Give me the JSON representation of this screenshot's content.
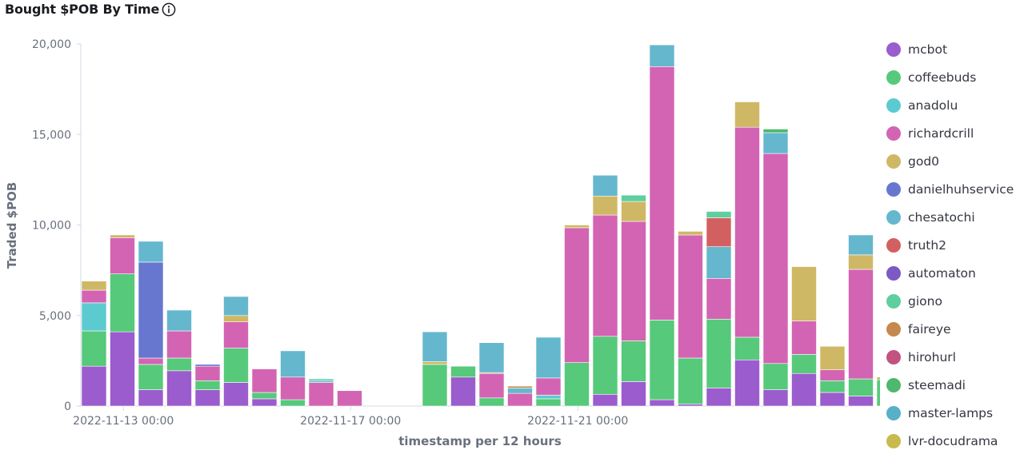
{
  "title": "Bought $POB By Time",
  "chart_data": {
    "type": "bar",
    "stacked": true,
    "title": "Bought $POB By Time",
    "xlabel": "timestamp per 12 hours",
    "ylabel": "Traded $POB",
    "ylim": [
      0,
      20000
    ],
    "yticks": [
      "0",
      "5,000",
      "10,000",
      "15,000",
      "20,000"
    ],
    "y_tick_values": [
      0,
      5000,
      10000,
      15000,
      20000
    ],
    "grid": false,
    "legend_position": "right",
    "x_ticks": [
      {
        "label": "2022-11-13 00:00",
        "category_index": 1.5
      },
      {
        "label": "2022-11-17 00:00",
        "category_index": 9.5
      },
      {
        "label": "2022-11-21 00:00",
        "category_index": 17.5
      }
    ],
    "categories": [
      "2022-11-12 12:00",
      "2022-11-13 00:00",
      "2022-11-13 12:00",
      "2022-11-14 00:00",
      "2022-11-14 12:00",
      "2022-11-15 00:00",
      "2022-11-15 12:00",
      "2022-11-16 00:00",
      "2022-11-16 12:00",
      "2022-11-17 00:00",
      "2022-11-17 12:00",
      "2022-11-18 00:00",
      "2022-11-18 12:00",
      "2022-11-19 00:00",
      "2022-11-19 12:00",
      "2022-11-20 00:00",
      "2022-11-20 12:00",
      "2022-11-21 00:00",
      "2022-11-21 12:00",
      "2022-11-22 00:00",
      "2022-11-22 12:00",
      "2022-11-23 00:00",
      "2022-11-23 12:00",
      "2022-11-24 00:00",
      "2022-11-24 12:00",
      "2022-11-25 00:00",
      "2022-11-25 12:00",
      "2022-11-26 00:00",
      "2022-11-26 12:00",
      "2022-11-27 00:00"
    ],
    "series": [
      {
        "name": "mcbot",
        "color": "#9b5ccd",
        "values": [
          2200,
          4100,
          900,
          1950,
          900,
          1300,
          400,
          0,
          0,
          0,
          0,
          0,
          0,
          1600,
          0,
          0,
          0,
          0,
          650,
          1350,
          350,
          100,
          1000,
          2550,
          900,
          1800,
          750,
          550,
          0,
          0
        ]
      },
      {
        "name": "coffeebuds",
        "color": "#57c97a",
        "values": [
          1950,
          3200,
          1400,
          700,
          500,
          1900,
          350,
          350,
          0,
          0,
          0,
          0,
          2300,
          600,
          450,
          0,
          400,
          2400,
          3200,
          2250,
          4400,
          2550,
          3800,
          1250,
          1450,
          1050,
          650,
          950,
          1450,
          0
        ]
      },
      {
        "name": "anadolu",
        "color": "#5ccbd0",
        "values": [
          1550,
          0,
          0,
          0,
          0,
          0,
          0,
          0,
          0,
          0,
          0,
          0,
          0,
          0,
          0,
          0,
          200,
          0,
          0,
          0,
          0,
          0,
          0,
          0,
          0,
          0,
          0,
          0,
          0,
          0
        ]
      },
      {
        "name": "richardcrill",
        "color": "#d364b3",
        "values": [
          700,
          2000,
          350,
          1500,
          800,
          1450,
          1300,
          1250,
          1300,
          850,
          0,
          0,
          0,
          0,
          1350,
          700,
          950,
          7450,
          6700,
          6600,
          14000,
          6800,
          2250,
          11600,
          11600,
          1850,
          600,
          6050,
          0,
          0
        ]
      },
      {
        "name": "god0",
        "color": "#cfb865",
        "values": [
          500,
          150,
          0,
          0,
          0,
          350,
          0,
          0,
          0,
          0,
          0,
          0,
          150,
          0,
          50,
          0,
          0,
          150,
          1050,
          1100,
          0,
          200,
          0,
          1400,
          0,
          3000,
          1300,
          800,
          150,
          0
        ]
      },
      {
        "name": "danielhuhservice",
        "color": "#6777cf",
        "values": [
          0,
          0,
          5300,
          0,
          100,
          0,
          0,
          0,
          0,
          0,
          0,
          0,
          0,
          0,
          0,
          0,
          0,
          0,
          0,
          0,
          0,
          0,
          0,
          0,
          0,
          0,
          0,
          0,
          0,
          0
        ]
      },
      {
        "name": "chesatochi",
        "color": "#65b7cd",
        "values": [
          0,
          0,
          1150,
          1150,
          0,
          1050,
          0,
          1450,
          100,
          0,
          0,
          0,
          1650,
          0,
          1650,
          300,
          2250,
          0,
          1150,
          0,
          1200,
          0,
          1750,
          0,
          1150,
          0,
          0,
          1100,
          0,
          0
        ]
      },
      {
        "name": "truth2",
        "color": "#d36060",
        "values": [
          0,
          0,
          0,
          0,
          0,
          0,
          0,
          0,
          0,
          0,
          0,
          0,
          0,
          0,
          0,
          0,
          0,
          0,
          0,
          0,
          0,
          0,
          1600,
          0,
          0,
          0,
          0,
          0,
          0,
          0
        ]
      },
      {
        "name": "automaton",
        "color": "#7d59c3",
        "values": [
          0,
          0,
          0,
          0,
          0,
          0,
          0,
          0,
          0,
          0,
          0,
          0,
          0,
          0,
          0,
          0,
          0,
          0,
          0,
          0,
          0,
          0,
          0,
          0,
          0,
          0,
          0,
          0,
          0,
          0
        ]
      },
      {
        "name": "giono",
        "color": "#5fcf9f",
        "values": [
          0,
          0,
          0,
          0,
          0,
          0,
          0,
          0,
          100,
          0,
          0,
          0,
          0,
          0,
          0,
          0,
          0,
          0,
          0,
          350,
          0,
          0,
          350,
          0,
          0,
          0,
          0,
          0,
          0,
          0
        ]
      },
      {
        "name": "faireye",
        "color": "#c5894e",
        "values": [
          0,
          0,
          0,
          0,
          0,
          0,
          0,
          0,
          0,
          0,
          0,
          0,
          0,
          0,
          0,
          100,
          0,
          0,
          0,
          0,
          0,
          0,
          0,
          0,
          0,
          0,
          0,
          0,
          0,
          0
        ]
      },
      {
        "name": "hirohurl",
        "color": "#c25381",
        "values": [
          0,
          0,
          0,
          0,
          0,
          0,
          0,
          0,
          0,
          0,
          0,
          0,
          0,
          0,
          0,
          0,
          0,
          0,
          0,
          0,
          0,
          0,
          0,
          0,
          0,
          0,
          0,
          0,
          0,
          0
        ]
      },
      {
        "name": "steemadi",
        "color": "#4eb86c",
        "values": [
          0,
          0,
          0,
          0,
          0,
          0,
          0,
          0,
          0,
          0,
          0,
          0,
          0,
          0,
          0,
          0,
          0,
          0,
          0,
          0,
          0,
          0,
          0,
          0,
          200,
          0,
          0,
          0,
          0,
          0
        ]
      },
      {
        "name": "master-lamps",
        "color": "#57b0c8",
        "values": [
          0,
          0,
          0,
          0,
          0,
          0,
          0,
          0,
          0,
          0,
          0,
          0,
          0,
          0,
          0,
          0,
          0,
          0,
          0,
          0,
          0,
          0,
          0,
          0,
          0,
          0,
          0,
          0,
          0,
          0
        ]
      },
      {
        "name": "lvr-docudrama",
        "color": "#c7bb4e",
        "values": [
          0,
          0,
          0,
          0,
          0,
          0,
          0,
          0,
          0,
          0,
          0,
          0,
          0,
          0,
          0,
          0,
          0,
          0,
          0,
          0,
          0,
          0,
          0,
          0,
          0,
          0,
          0,
          0,
          0,
          0
        ]
      }
    ]
  }
}
